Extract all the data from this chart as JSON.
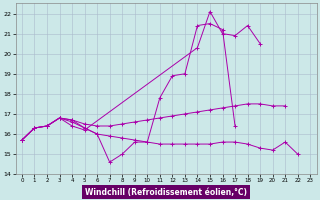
{
  "xlabel": "Windchill (Refroidissement éolien,°C)",
  "bg_color": "#cce8e8",
  "grid_color": "#aabbcc",
  "line_color": "#aa00aa",
  "xlim": [
    -0.5,
    23.5
  ],
  "ylim": [
    14,
    22.5
  ],
  "yticks": [
    14,
    15,
    16,
    17,
    18,
    19,
    20,
    21,
    22
  ],
  "xticks": [
    0,
    1,
    2,
    3,
    4,
    5,
    6,
    7,
    8,
    9,
    10,
    11,
    12,
    13,
    14,
    15,
    16,
    17,
    18,
    19,
    20,
    21,
    22,
    23
  ],
  "series": [
    {
      "x": [
        0,
        1,
        2,
        3,
        4,
        5,
        6,
        7,
        8,
        9,
        10,
        11,
        12,
        13,
        14,
        15,
        16,
        17
      ],
      "y": [
        15.7,
        16.3,
        16.4,
        16.8,
        16.7,
        16.3,
        16.0,
        14.6,
        15.0,
        15.6,
        15.6,
        17.8,
        18.9,
        19.0,
        21.4,
        21.5,
        21.2,
        16.4
      ]
    },
    {
      "x": [
        0,
        1,
        2,
        3,
        4,
        5,
        14,
        15,
        16,
        17,
        18,
        19
      ],
      "y": [
        15.7,
        16.3,
        16.4,
        16.8,
        16.4,
        16.2,
        20.3,
        22.1,
        21.0,
        20.9,
        21.4,
        20.5
      ]
    },
    {
      "x": [
        0,
        1,
        2,
        3,
        4,
        5,
        6,
        7,
        8,
        9,
        10,
        11,
        12,
        13,
        14,
        15,
        16,
        17,
        18,
        19,
        20,
        21
      ],
      "y": [
        15.7,
        16.3,
        16.4,
        16.8,
        16.7,
        16.5,
        16.4,
        16.4,
        16.5,
        16.6,
        16.7,
        16.8,
        16.9,
        17.0,
        17.1,
        17.2,
        17.3,
        17.4,
        17.5,
        17.5,
        17.4,
        17.4
      ]
    },
    {
      "x": [
        0,
        1,
        2,
        3,
        4,
        5,
        6,
        7,
        8,
        9,
        10,
        11,
        12,
        13,
        14,
        15,
        16,
        17,
        18,
        19,
        20,
        21,
        22
      ],
      "y": [
        15.7,
        16.3,
        16.4,
        16.8,
        16.6,
        16.3,
        16.0,
        15.9,
        15.8,
        15.7,
        15.6,
        15.5,
        15.5,
        15.5,
        15.5,
        15.5,
        15.6,
        15.6,
        15.5,
        15.3,
        15.2,
        15.6,
        15.0
      ]
    }
  ],
  "xlabel_bg": "#660066",
  "xlabel_fg": "#ffffff",
  "xlabel_fontsize": 5.5
}
